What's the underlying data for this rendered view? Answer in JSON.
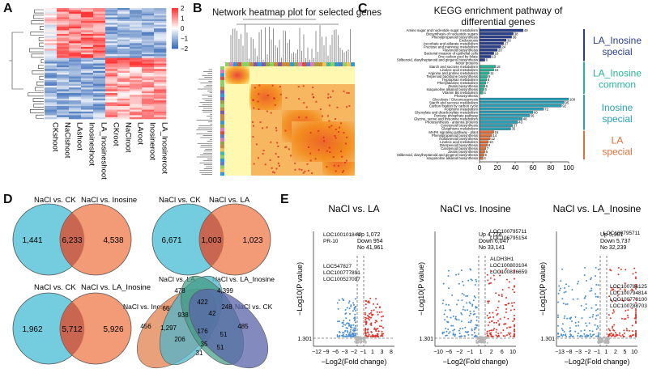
{
  "panels": {
    "A": {
      "letter": "A",
      "samples": [
        "CKshoot",
        "NaClshoot",
        "LAshoot",
        "Inosineshoot",
        "LA_Inosineshoot",
        "CKroot",
        "NaClroot",
        "LAroot",
        "Inosineroot",
        "LA_Inosineroot"
      ],
      "colorbar_ticks": [
        "2",
        "1",
        "0",
        "−1",
        "−2"
      ],
      "colors": {
        "high": "#e23b3b",
        "mid": "#ffffff",
        "low": "#3b6fb6"
      }
    },
    "B": {
      "letter": "B",
      "title": "Network heatmap plot for selected genes"
    },
    "C": {
      "letter": "C",
      "title_line1": "KEGG enrichment pathway of",
      "title_line2": "differential genes",
      "groups": [
        {
          "name_line1": "LA_Inosine",
          "name_line2": "special",
          "color": "#2b3f8f"
        },
        {
          "name_line1": "LA_Inosine",
          "name_line2": "common",
          "color": "#27b59a"
        },
        {
          "name_line1": "Inosine",
          "name_line2": "special",
          "color": "#2a9fb8"
        },
        {
          "name_line1": "LA",
          "name_line2": "special",
          "color": "#e2703a"
        }
      ]
    },
    "D": {
      "letter": "D",
      "venn1": {
        "left_label": "NaCl vs. CK",
        "right_label": "NaCl vs. Inosine",
        "left": "1,441",
        "mid": "6,233",
        "right": "4,538"
      },
      "venn2": {
        "left_label": "NaCl vs. CK",
        "right_label": "NaCl vs. LA",
        "left": "6,671",
        "mid": "1,003",
        "right": "1,023"
      },
      "venn3": {
        "left_label": "NaCl vs. CK",
        "right_label": "NaCl vs. LA_Inosine",
        "left": "1,962",
        "mid": "5,712",
        "right": "5,926"
      },
      "venn4": {
        "labels": [
          "NaCl vs. LA",
          "NaCl vs. LA_Inosine",
          "NaCl vs. Inosine",
          "NaCl vs. CK"
        ],
        "values": [
          "478",
          "4,399",
          "422",
          "248",
          "66",
          "938",
          "42",
          "485",
          "456",
          "1,297",
          "176",
          "51",
          "206",
          "35",
          "31",
          "51"
        ]
      }
    },
    "E": {
      "letter": "E",
      "ylabel": "−Log10(P value)",
      "xlabel": "−Log2(Fold change)",
      "threshold": "1.301",
      "plots": [
        {
          "title": "NaCl  vs. LA",
          "up": "Up   1,072",
          "down": "Down   954",
          "no": "No   41,961",
          "genes": [
            "LOC100101844",
            "PR-10",
            "LOC547827",
            "LOC100777891",
            "LOC100527097"
          ],
          "xticks": [
            "−12",
            "−9",
            "−6",
            "−3",
            "−2",
            "−1",
            "1",
            "3",
            "8"
          ]
        },
        {
          "title": "NaCl  vs. Inosine",
          "up": "Up   4,724",
          "down": "Down   6,047",
          "no": "No   33,141",
          "genes": [
            "LOC100795711",
            "LOC106795154",
            "ALDH3H1",
            "LOC100803104",
            "LOC100816659"
          ],
          "xticks": [
            "−10",
            "−6",
            "−2",
            "−1",
            "1",
            "2",
            "6",
            "10"
          ]
        },
        {
          "title": "NaCl  vs. LA_Inosine",
          "up": "Up   5,901",
          "down": "Down   5,737",
          "no": "No   32,239",
          "genes": [
            "LOC100795711",
            "LOC100786125",
            "LOC100794814",
            "LOC100779100",
            "LOC100788703"
          ],
          "xticks": [
            "−13",
            "−8",
            "−3",
            "−2",
            "−1",
            "1",
            "2",
            "5",
            "10"
          ]
        }
      ]
    }
  },
  "chart_data": {
    "type": "bar",
    "title": "KEGG enrichment pathway of differential genes",
    "xlabel": "",
    "ylabel": "",
    "xlim": [
      0,
      100
    ],
    "xticks": [
      "0",
      "20",
      "40",
      "60",
      "80",
      "100"
    ],
    "bars": [
      {
        "label": "Amino sugar and nucleotide sugar metabolism",
        "value": 49,
        "group": 0
      },
      {
        "label": "Biosynthesis of nucleotide sugars",
        "value": 38,
        "group": 0
      },
      {
        "label": "Phenylpropanoid biosynthesis",
        "value": 36,
        "group": 0
      },
      {
        "label": "Endocytosis",
        "value": 30,
        "group": 0
      },
      {
        "label": "Ascorbate and aldarate metabolism",
        "value": 27,
        "group": 0
      },
      {
        "label": "Fructose and mannose metabolism",
        "value": 24,
        "group": 0
      },
      {
        "label": "Flavonoid biosynthesis",
        "value": 20,
        "group": 0
      },
      {
        "label": "Bacterial invasion of epithelial cells",
        "value": 16,
        "group": 0
      },
      {
        "label": "One carbon pool by folate",
        "value": 13,
        "group": 0
      },
      {
        "label": "Stilbenoid, diarylheptanoid and gingerol biosynthesis",
        "value": 6,
        "group": 0
      },
      {
        "label": "Motor proteins",
        "value": 0,
        "group": 1
      },
      {
        "label": "Starch and sucrose metabolism",
        "value": 18,
        "group": 1
      },
      {
        "label": "Linoleic acid metabolism",
        "value": 16,
        "group": 1
      },
      {
        "label": "Arginine and proline metabolism",
        "value": 11,
        "group": 1
      },
      {
        "label": "Terpenoid backbone biosynthesis",
        "value": 9,
        "group": 1
      },
      {
        "label": "Tryptophan metabolism",
        "value": 8,
        "group": 1
      },
      {
        "label": "Phenylalanine metabolism",
        "value": 7,
        "group": 1
      },
      {
        "label": "Zeatin biosynthesis",
        "value": 6,
        "group": 1
      },
      {
        "label": "Isoquinoline alkaloid biosynthesis",
        "value": 5,
        "group": 1
      },
      {
        "label": "Vitamin B6 metabolism",
        "value": 4,
        "group": 1
      },
      {
        "label": "Photosynthesis",
        "value": 0,
        "group": 2
      },
      {
        "label": "Glycolysis / Gluconeogenesis",
        "value": 100,
        "group": 2
      },
      {
        "label": "Starch and sucrose metabolism",
        "value": 95,
        "group": 2
      },
      {
        "label": "Carbon fixation by carbon cycle",
        "value": 92,
        "group": 2
      },
      {
        "label": "Porphyrin metabolism",
        "value": 72,
        "group": 2
      },
      {
        "label": "Glyoxylate and dicarboxylate metabolism",
        "value": 60,
        "group": 2
      },
      {
        "label": "Pentose phosphate pathway",
        "value": 56,
        "group": 2
      },
      {
        "label": "Glycine, serine and threonine metabolism",
        "value": 48,
        "group": 2
      },
      {
        "label": "Photosynthesis - antenna proteins",
        "value": 43,
        "group": 2
      },
      {
        "label": "Carotenoid biosynthesis",
        "value": 37,
        "group": 2
      },
      {
        "label": "Glutathione metabolism",
        "value": 35,
        "group": 2
      },
      {
        "label": "MAPK signaling pathway - plant",
        "value": 16,
        "group": 3
      },
      {
        "label": "Phenylpropanoid biosynthesis",
        "value": 14,
        "group": 3
      },
      {
        "label": "Isoflavonoid biosynthesis",
        "value": 12,
        "group": 3
      },
      {
        "label": "Linoleic acid metabolism",
        "value": 10,
        "group": 3
      },
      {
        "label": "Diterpenoid biosynthesis",
        "value": 9,
        "group": 3
      },
      {
        "label": "Carotenoid biosynthesis",
        "value": 7,
        "group": 3
      },
      {
        "label": "Zeatin biosynthesis",
        "value": 6,
        "group": 3
      },
      {
        "label": "Stilbenoid, diarylheptanoid and gingerol biosynthesis",
        "value": 5,
        "group": 3
      },
      {
        "label": "Isoquinoline alkaloid biosynthesis",
        "value": 4,
        "group": 3
      }
    ]
  }
}
